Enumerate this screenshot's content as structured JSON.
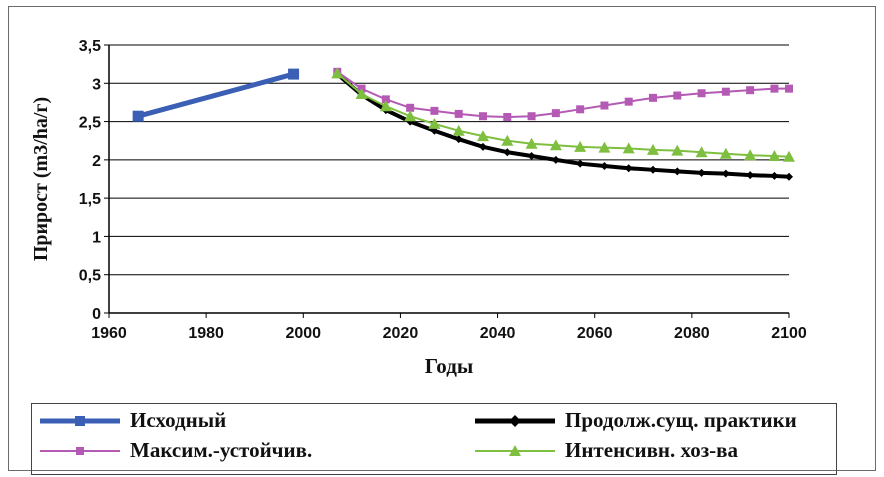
{
  "chart_data": {
    "type": "line",
    "xlabel": "Годы",
    "ylabel": "Прирост (m3/ha/г)",
    "xlim": [
      1960,
      2100
    ],
    "ylim": [
      0,
      3.5
    ],
    "x_ticks": [
      "1960",
      "1980",
      "2000",
      "2020",
      "2040",
      "2060",
      "2080",
      "2100"
    ],
    "y_ticks": [
      "0",
      "0,5",
      "1",
      "1,5",
      "2",
      "2,5",
      "3",
      "3,5"
    ],
    "grid": "horizontal",
    "legend_position": "bottom",
    "series": [
      {
        "name": "Исходный",
        "color": "#3b5fb5",
        "marker": "square",
        "points": [
          [
            1966,
            2.57
          ],
          [
            1998,
            3.12
          ]
        ]
      },
      {
        "name": "Продолж.сущ. практики",
        "color": "#000000",
        "marker": "diamond",
        "points": [
          [
            2007,
            3.12
          ],
          [
            2012,
            2.85
          ],
          [
            2017,
            2.65
          ],
          [
            2022,
            2.5
          ],
          [
            2027,
            2.38
          ],
          [
            2032,
            2.27
          ],
          [
            2037,
            2.17
          ],
          [
            2042,
            2.1
          ],
          [
            2047,
            2.05
          ],
          [
            2052,
            2.0
          ],
          [
            2057,
            1.95
          ],
          [
            2062,
            1.92
          ],
          [
            2067,
            1.89
          ],
          [
            2072,
            1.87
          ],
          [
            2077,
            1.85
          ],
          [
            2082,
            1.83
          ],
          [
            2087,
            1.82
          ],
          [
            2092,
            1.8
          ],
          [
            2097,
            1.79
          ],
          [
            2100,
            1.78
          ]
        ]
      },
      {
        "name": "Максим.-устойчив.",
        "color": "#b45ab4",
        "marker": "square",
        "points": [
          [
            2007,
            3.15
          ],
          [
            2012,
            2.93
          ],
          [
            2017,
            2.79
          ],
          [
            2022,
            2.68
          ],
          [
            2027,
            2.64
          ],
          [
            2032,
            2.6
          ],
          [
            2037,
            2.57
          ],
          [
            2042,
            2.56
          ],
          [
            2047,
            2.57
          ],
          [
            2052,
            2.61
          ],
          [
            2057,
            2.66
          ],
          [
            2062,
            2.71
          ],
          [
            2067,
            2.76
          ],
          [
            2072,
            2.81
          ],
          [
            2077,
            2.84
          ],
          [
            2082,
            2.87
          ],
          [
            2087,
            2.89
          ],
          [
            2092,
            2.91
          ],
          [
            2097,
            2.93
          ],
          [
            2100,
            2.93
          ]
        ]
      },
      {
        "name": "Интенсивн. хоз-ва",
        "color": "#7fbf3f",
        "marker": "triangle",
        "points": [
          [
            2007,
            3.13
          ],
          [
            2012,
            2.86
          ],
          [
            2017,
            2.7
          ],
          [
            2022,
            2.57
          ],
          [
            2027,
            2.47
          ],
          [
            2032,
            2.38
          ],
          [
            2037,
            2.31
          ],
          [
            2042,
            2.25
          ],
          [
            2047,
            2.21
          ],
          [
            2052,
            2.19
          ],
          [
            2057,
            2.17
          ],
          [
            2062,
            2.16
          ],
          [
            2067,
            2.15
          ],
          [
            2072,
            2.13
          ],
          [
            2077,
            2.12
          ],
          [
            2082,
            2.1
          ],
          [
            2087,
            2.08
          ],
          [
            2092,
            2.06
          ],
          [
            2097,
            2.05
          ],
          [
            2100,
            2.04
          ]
        ]
      }
    ]
  },
  "legend": {
    "items": [
      {
        "label": "Исходный"
      },
      {
        "label": "Продолж.сущ. практики"
      },
      {
        "label": "Максим.-устойчив."
      },
      {
        "label": "Интенсивн. хоз-ва"
      }
    ]
  }
}
